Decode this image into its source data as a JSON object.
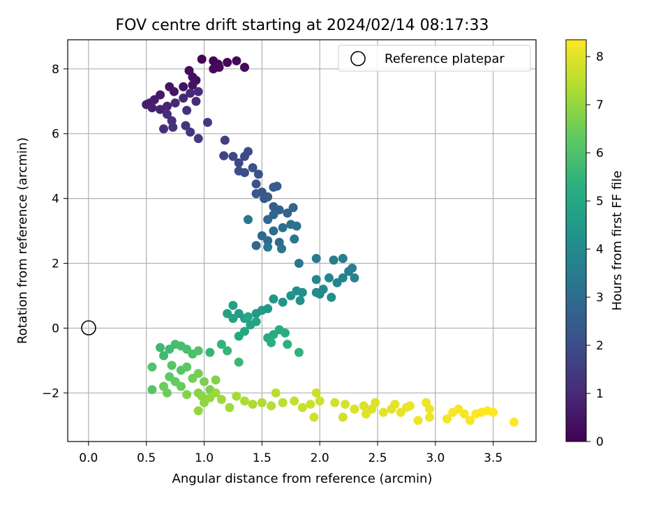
{
  "chart_data": {
    "type": "scatter",
    "title": "FOV centre drift starting at 2024/02/14 08:17:33",
    "xlabel": "Angular distance from reference (arcmin)",
    "ylabel": "Rotation from reference (arcmin)",
    "xlim": [
      -0.18,
      3.87
    ],
    "ylim": [
      -3.5,
      8.9
    ],
    "xticks": [
      0.0,
      0.5,
      1.0,
      1.5,
      2.0,
      2.5,
      3.0,
      3.5
    ],
    "xtick_labels": [
      "0.0",
      "0.5",
      "1.0",
      "1.5",
      "2.0",
      "2.5",
      "3.0",
      "3.5"
    ],
    "yticks": [
      -2,
      0,
      2,
      4,
      6,
      8
    ],
    "ytick_labels": [
      "−2",
      "0",
      "2",
      "4",
      "6",
      "8"
    ],
    "grid": true,
    "legend": {
      "placement": "top-right",
      "entries": [
        "Reference platepar"
      ]
    },
    "colorbar": {
      "label": "Hours from first FF file",
      "colormap": "viridis",
      "range": [
        0,
        8.35
      ],
      "ticks": [
        0,
        1,
        2,
        3,
        4,
        5,
        6,
        7,
        8
      ],
      "tick_labels": [
        "0",
        "1",
        "2",
        "3",
        "4",
        "5",
        "6",
        "7",
        "8"
      ]
    },
    "reference_point": {
      "name": "Reference platepar",
      "x": 0.0,
      "y": 0.0
    },
    "points": [
      [
        0.98,
        8.3,
        0.05
      ],
      [
        1.08,
        8.25,
        0.08
      ],
      [
        1.12,
        8.15,
        0.1
      ],
      [
        1.2,
        8.2,
        0.12
      ],
      [
        1.28,
        8.25,
        0.15
      ],
      [
        1.35,
        8.05,
        0.18
      ],
      [
        1.08,
        8.0,
        0.2
      ],
      [
        1.13,
        8.05,
        0.22
      ],
      [
        0.87,
        7.95,
        0.25
      ],
      [
        0.9,
        7.75,
        0.3
      ],
      [
        0.93,
        7.65,
        0.35
      ],
      [
        0.82,
        7.45,
        0.4
      ],
      [
        0.9,
        7.5,
        0.42
      ],
      [
        0.74,
        7.3,
        0.45
      ],
      [
        0.7,
        7.45,
        0.5
      ],
      [
        0.62,
        7.2,
        0.55
      ],
      [
        0.57,
        7.05,
        0.6
      ],
      [
        0.53,
        6.95,
        0.65
      ],
      [
        0.5,
        6.9,
        0.7
      ],
      [
        0.55,
        6.8,
        0.75
      ],
      [
        0.62,
        6.75,
        0.8
      ],
      [
        0.68,
        6.85,
        0.85
      ],
      [
        0.75,
        6.95,
        0.9
      ],
      [
        0.82,
        7.1,
        0.95
      ],
      [
        0.88,
        7.25,
        1.0
      ],
      [
        0.93,
        7.0,
        1.02
      ],
      [
        0.95,
        7.3,
        1.05
      ],
      [
        0.68,
        6.6,
        1.1
      ],
      [
        0.72,
        6.4,
        1.12
      ],
      [
        0.65,
        6.15,
        1.15
      ],
      [
        0.73,
        6.2,
        1.2
      ],
      [
        0.85,
        6.72,
        1.25
      ],
      [
        0.84,
        6.25,
        1.3
      ],
      [
        0.88,
        6.05,
        1.35
      ],
      [
        0.95,
        5.85,
        1.4
      ],
      [
        1.03,
        6.35,
        1.45
      ],
      [
        1.18,
        5.8,
        1.6
      ],
      [
        1.17,
        5.32,
        1.7
      ],
      [
        1.25,
        5.3,
        1.8
      ],
      [
        1.3,
        5.1,
        1.85
      ],
      [
        1.35,
        5.3,
        1.9
      ],
      [
        1.38,
        5.45,
        1.95
      ],
      [
        1.3,
        4.85,
        2.0
      ],
      [
        1.35,
        4.8,
        2.05
      ],
      [
        1.42,
        4.95,
        2.1
      ],
      [
        1.47,
        4.75,
        2.15
      ],
      [
        1.45,
        4.45,
        2.2
      ],
      [
        1.5,
        4.2,
        2.25
      ],
      [
        1.45,
        4.15,
        2.3
      ],
      [
        1.52,
        4.0,
        2.35
      ],
      [
        1.55,
        4.05,
        2.4
      ],
      [
        1.6,
        4.35,
        2.45
      ],
      [
        1.63,
        4.38,
        2.5
      ],
      [
        1.6,
        3.75,
        2.55
      ],
      [
        1.65,
        3.65,
        2.6
      ],
      [
        1.72,
        3.55,
        2.65
      ],
      [
        1.77,
        3.72,
        2.7
      ],
      [
        1.6,
        3.5,
        2.75
      ],
      [
        1.55,
        3.35,
        2.78
      ],
      [
        1.5,
        2.85,
        2.82
      ],
      [
        1.45,
        2.55,
        2.85
      ],
      [
        1.55,
        2.7,
        2.9
      ],
      [
        1.65,
        2.65,
        2.95
      ],
      [
        1.6,
        3.0,
        3.0
      ],
      [
        1.68,
        3.1,
        3.05
      ],
      [
        1.75,
        3.2,
        3.1
      ],
      [
        1.8,
        3.15,
        3.15
      ],
      [
        1.78,
        2.75,
        3.2
      ],
      [
        1.67,
        2.45,
        3.25
      ],
      [
        1.82,
        2.0,
        3.3
      ],
      [
        1.38,
        3.35,
        3.35
      ],
      [
        1.55,
        2.5,
        3.4
      ],
      [
        1.97,
        2.15,
        3.45
      ],
      [
        2.12,
        2.1,
        3.5
      ],
      [
        2.2,
        2.15,
        3.55
      ],
      [
        2.25,
        1.75,
        3.6
      ],
      [
        2.28,
        1.85,
        3.65
      ],
      [
        2.3,
        1.55,
        3.7
      ],
      [
        2.2,
        1.55,
        3.75
      ],
      [
        2.15,
        1.4,
        3.8
      ],
      [
        2.08,
        1.55,
        3.85
      ],
      [
        1.97,
        1.5,
        3.9
      ],
      [
        2.03,
        1.2,
        3.95
      ],
      [
        2.0,
        1.05,
        4.0
      ],
      [
        1.97,
        1.1,
        4.05
      ],
      [
        2.1,
        0.95,
        4.1
      ],
      [
        1.85,
        1.1,
        4.15
      ],
      [
        1.8,
        1.15,
        4.2
      ],
      [
        1.75,
        1.0,
        4.25
      ],
      [
        1.83,
        0.85,
        4.3
      ],
      [
        1.68,
        0.8,
        4.35
      ],
      [
        1.6,
        0.9,
        4.4
      ],
      [
        1.55,
        0.6,
        4.45
      ],
      [
        1.5,
        0.55,
        4.5
      ],
      [
        1.45,
        0.45,
        4.55
      ],
      [
        1.35,
        0.3,
        4.6
      ],
      [
        1.3,
        0.45,
        4.65
      ],
      [
        1.25,
        0.7,
        4.7
      ],
      [
        1.2,
        0.45,
        4.75
      ],
      [
        1.25,
        0.3,
        4.8
      ],
      [
        1.4,
        0.1,
        4.85
      ],
      [
        1.45,
        0.2,
        4.9
      ],
      [
        1.38,
        0.35,
        4.95
      ],
      [
        1.35,
        -0.1,
        5.0
      ],
      [
        1.3,
        -0.25,
        5.05
      ],
      [
        1.55,
        -0.3,
        5.1
      ],
      [
        1.6,
        -0.2,
        5.15
      ],
      [
        1.65,
        -0.05,
        5.2
      ],
      [
        1.7,
        -0.15,
        5.25
      ],
      [
        1.58,
        -0.45,
        5.3
      ],
      [
        1.72,
        -0.5,
        5.35
      ],
      [
        1.82,
        -0.75,
        5.4
      ],
      [
        1.15,
        -0.5,
        5.45
      ],
      [
        1.05,
        -0.75,
        5.5
      ],
      [
        1.2,
        -0.7,
        5.55
      ],
      [
        1.3,
        -1.05,
        5.6
      ],
      [
        0.62,
        -0.6,
        5.65
      ],
      [
        0.65,
        -0.85,
        5.7
      ],
      [
        0.7,
        -0.65,
        5.75
      ],
      [
        0.75,
        -0.5,
        5.8
      ],
      [
        0.8,
        -0.55,
        5.85
      ],
      [
        0.85,
        -0.65,
        5.9
      ],
      [
        0.9,
        -0.8,
        5.95
      ],
      [
        0.95,
        -0.7,
        6.0
      ],
      [
        0.55,
        -1.2,
        6.05
      ],
      [
        0.55,
        -1.9,
        6.1
      ],
      [
        0.72,
        -1.15,
        6.15
      ],
      [
        0.8,
        -1.3,
        6.2
      ],
      [
        0.85,
        -1.2,
        6.25
      ],
      [
        0.7,
        -1.5,
        6.3
      ],
      [
        0.75,
        -1.65,
        6.35
      ],
      [
        0.8,
        -1.8,
        6.4
      ],
      [
        0.65,
        -1.8,
        6.45
      ],
      [
        0.68,
        -2.0,
        6.5
      ],
      [
        0.9,
        -1.55,
        6.55
      ],
      [
        0.95,
        -1.4,
        6.6
      ],
      [
        1.0,
        -1.65,
        6.65
      ],
      [
        1.05,
        -1.9,
        6.7
      ],
      [
        1.1,
        -1.6,
        6.75
      ],
      [
        0.85,
        -2.05,
        6.8
      ],
      [
        0.95,
        -2.0,
        6.85
      ],
      [
        0.98,
        -2.1,
        6.9
      ],
      [
        1.0,
        -2.3,
        6.95
      ],
      [
        0.95,
        -2.55,
        7.0
      ],
      [
        1.05,
        -2.15,
        7.05
      ],
      [
        1.1,
        -2.0,
        7.1
      ],
      [
        1.15,
        -2.2,
        7.15
      ],
      [
        1.22,
        -2.45,
        7.2
      ],
      [
        1.28,
        -2.1,
        7.25
      ],
      [
        1.35,
        -2.25,
        7.3
      ],
      [
        1.42,
        -2.35,
        7.35
      ],
      [
        1.5,
        -2.3,
        7.4
      ],
      [
        1.58,
        -2.4,
        7.45
      ],
      [
        1.62,
        -2.0,
        7.5
      ],
      [
        1.68,
        -2.3,
        7.55
      ],
      [
        1.78,
        -2.25,
        7.6
      ],
      [
        1.85,
        -2.45,
        7.65
      ],
      [
        1.92,
        -2.35,
        7.7
      ],
      [
        1.97,
        -2.0,
        7.72
      ],
      [
        2.0,
        -2.25,
        7.75
      ],
      [
        1.95,
        -2.75,
        7.78
      ],
      [
        2.13,
        -2.3,
        7.8
      ],
      [
        2.2,
        -2.75,
        7.82
      ],
      [
        2.22,
        -2.35,
        7.85
      ],
      [
        2.3,
        -2.5,
        7.88
      ],
      [
        2.38,
        -2.4,
        7.9
      ],
      [
        2.45,
        -2.5,
        7.92
      ],
      [
        2.48,
        -2.3,
        7.95
      ],
      [
        2.4,
        -2.65,
        7.97
      ],
      [
        2.55,
        -2.6,
        8.0
      ],
      [
        2.62,
        -2.5,
        8.02
      ],
      [
        2.65,
        -2.35,
        8.05
      ],
      [
        2.7,
        -2.6,
        8.07
      ],
      [
        2.75,
        -2.45,
        8.1
      ],
      [
        2.78,
        -2.4,
        8.12
      ],
      [
        2.85,
        -2.85,
        8.15
      ],
      [
        2.92,
        -2.3,
        8.15
      ],
      [
        2.95,
        -2.5,
        8.18
      ],
      [
        2.95,
        -2.75,
        8.2
      ],
      [
        3.1,
        -2.8,
        8.22
      ],
      [
        3.15,
        -2.6,
        8.25
      ],
      [
        3.2,
        -2.5,
        8.27
      ],
      [
        3.25,
        -2.65,
        8.3
      ],
      [
        3.3,
        -2.85,
        8.3
      ],
      [
        3.35,
        -2.65,
        8.32
      ],
      [
        3.4,
        -2.6,
        8.33
      ],
      [
        3.45,
        -2.55,
        8.34
      ],
      [
        3.5,
        -2.6,
        8.35
      ],
      [
        3.68,
        -2.9,
        8.35
      ]
    ]
  }
}
